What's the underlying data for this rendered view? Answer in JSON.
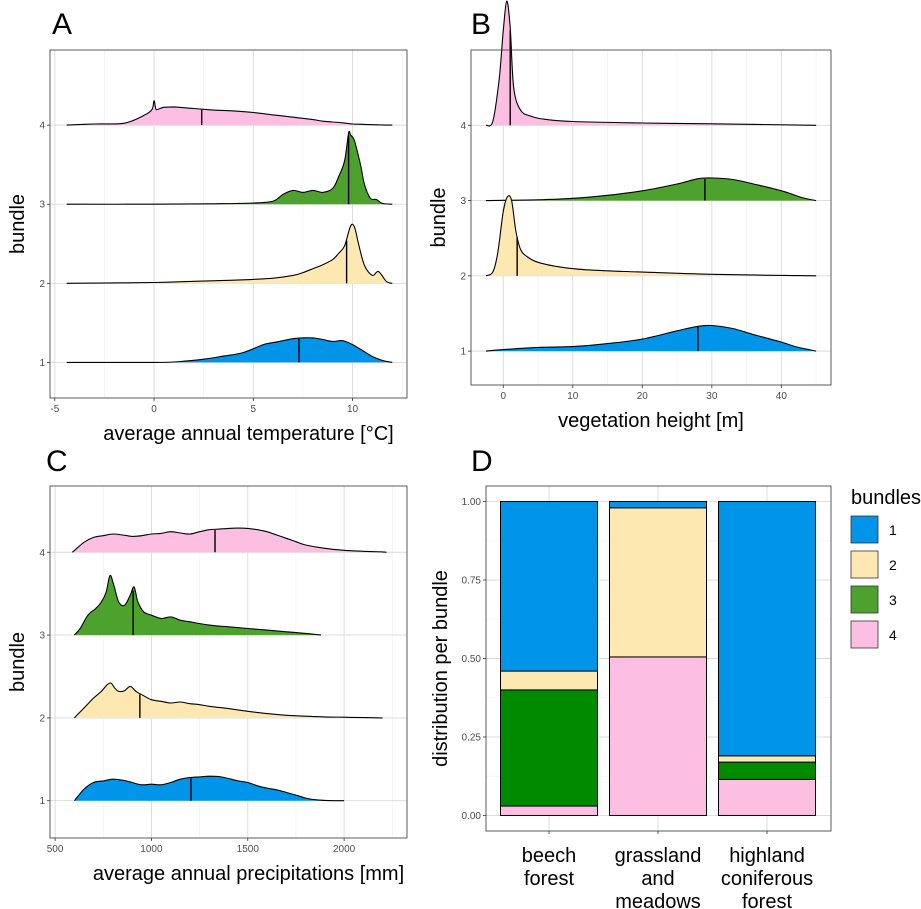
{
  "chart_data": [
    {
      "panel": "A",
      "type": "area",
      "xlabel": "average annual temperature [°C]",
      "ylabel": "bundle",
      "xlim": [
        -4.5,
        12
      ],
      "xticks": [
        -5,
        0,
        5,
        10
      ],
      "yticks": [
        1,
        2,
        3,
        4
      ],
      "series": [
        {
          "name": "1",
          "color": "#0095e8",
          "median": 7.3,
          "x": [
            -4.4,
            0,
            1,
            1.5,
            2.5,
            3.5,
            4.5,
            5.5,
            6,
            6.5,
            7,
            7.5,
            8,
            8.5,
            9,
            9.5,
            10,
            10.5,
            11,
            11.5,
            12
          ],
          "y": [
            0,
            0,
            0.01,
            0.03,
            0.08,
            0.16,
            0.25,
            0.45,
            0.5,
            0.55,
            0.6,
            0.62,
            0.62,
            0.58,
            0.53,
            0.55,
            0.45,
            0.3,
            0.15,
            0.05,
            0
          ]
        },
        {
          "name": "2",
          "color": "#fde8b2",
          "median": 9.7,
          "x": [
            -4.4,
            0,
            2,
            4,
            5,
            6,
            7,
            7.5,
            8,
            8.5,
            9,
            9.3,
            9.6,
            9.9,
            10.1,
            10.3,
            10.6,
            11,
            11.3,
            11.7,
            12
          ],
          "y": [
            0,
            0.02,
            0.05,
            0.08,
            0.1,
            0.13,
            0.2,
            0.27,
            0.37,
            0.47,
            0.6,
            0.76,
            0.95,
            1.45,
            1.42,
            1.0,
            0.45,
            0.2,
            0.3,
            0.05,
            0
          ]
        },
        {
          "name": "3",
          "color": "#4ca22c",
          "median": 9.8,
          "x": [
            -4.4,
            0,
            3,
            5,
            6,
            6.5,
            7,
            7.5,
            8,
            8.5,
            9,
            9.3,
            9.6,
            9.8,
            9.9,
            10.1,
            10.4,
            10.6,
            10.9,
            11.2,
            11.5,
            12
          ],
          "y": [
            0,
            0,
            0.01,
            0.03,
            0.08,
            0.25,
            0.35,
            0.3,
            0.35,
            0.3,
            0.4,
            0.7,
            1.1,
            1.8,
            1.75,
            1.6,
            1.0,
            0.5,
            0.15,
            0.12,
            0.02,
            0
          ]
        },
        {
          "name": "4",
          "color": "#fcbfe2",
          "median": 2.4,
          "x": [
            -4.4,
            -3,
            -1.5,
            -0.5,
            -0.1,
            0,
            0.1,
            0.3,
            0.5,
            1,
            1.5,
            2,
            2.5,
            3,
            4,
            5,
            6,
            7,
            8,
            8.5,
            9,
            9.5,
            10,
            10.5,
            11,
            12
          ],
          "y": [
            0,
            0.03,
            0.05,
            0.25,
            0.4,
            0.62,
            0.4,
            0.42,
            0.45,
            0.46,
            0.44,
            0.42,
            0.4,
            0.38,
            0.36,
            0.32,
            0.26,
            0.2,
            0.14,
            0.1,
            0.08,
            0.06,
            0.03,
            0.02,
            0.01,
            0
          ]
        }
      ]
    },
    {
      "panel": "B",
      "type": "area",
      "xlabel": "vegetation height [m]",
      "ylabel": "bundle",
      "xlim": [
        -2.5,
        45
      ],
      "xticks": [
        0,
        10,
        20,
        30,
        40
      ],
      "yticks": [
        1,
        2,
        3,
        4
      ],
      "series": [
        {
          "name": "1",
          "color": "#0095e8",
          "median": 28,
          "x": [
            -2.5,
            0,
            5,
            10,
            15,
            20,
            25,
            28,
            30,
            33,
            36,
            40,
            42,
            44,
            45
          ],
          "y": [
            0,
            0.02,
            0.05,
            0.06,
            0.1,
            0.16,
            0.27,
            0.33,
            0.34,
            0.3,
            0.22,
            0.12,
            0.06,
            0.02,
            0
          ]
        },
        {
          "name": "2",
          "color": "#fde8b2",
          "median": 2,
          "x": [
            -2.5,
            -1.5,
            -0.8,
            0,
            0.6,
            1.2,
            1.8,
            2.5,
            3.5,
            5,
            8,
            12,
            20,
            30,
            45
          ],
          "y": [
            0,
            0.05,
            0.3,
            0.85,
            1.05,
            1.0,
            0.6,
            0.35,
            0.25,
            0.18,
            0.12,
            0.08,
            0.05,
            0.02,
            0
          ]
        },
        {
          "name": "3",
          "color": "#4ca22c",
          "median": 29,
          "x": [
            -2.5,
            5,
            10,
            15,
            20,
            25,
            28,
            30,
            33,
            36,
            40,
            43,
            45
          ],
          "y": [
            0,
            0.01,
            0.03,
            0.07,
            0.13,
            0.22,
            0.29,
            0.3,
            0.28,
            0.22,
            0.13,
            0.04,
            0
          ]
        },
        {
          "name": "4",
          "color": "#fcbfe2",
          "median": 1,
          "x": [
            -2.5,
            -1.5,
            -0.6,
            0,
            0.5,
            1,
            1.5,
            2.5,
            4,
            6,
            10,
            20,
            30,
            45
          ],
          "y": [
            0,
            0.05,
            0.6,
            1.25,
            1.65,
            1.3,
            0.5,
            0.2,
            0.12,
            0.08,
            0.05,
            0.03,
            0.02,
            0
          ]
        }
      ]
    },
    {
      "panel": "C",
      "type": "area",
      "xlabel": "average annual precipitations [mm]",
      "ylabel": "bundle",
      "xlim": [
        550,
        2250
      ],
      "xticks": [
        500,
        1000,
        1500,
        2000
      ],
      "yticks": [
        1,
        2,
        3,
        4
      ],
      "series": [
        {
          "name": "1",
          "color": "#0095e8",
          "median": 1205,
          "x": [
            600,
            650,
            700,
            750,
            800,
            850,
            900,
            950,
            1000,
            1050,
            1100,
            1150,
            1200,
            1250,
            1300,
            1350,
            1400,
            1450,
            1500,
            1550,
            1600,
            1650,
            1700,
            1750,
            1800,
            1850,
            1900,
            2000
          ],
          "y": [
            0,
            0.35,
            0.55,
            0.6,
            0.65,
            0.62,
            0.55,
            0.48,
            0.5,
            0.48,
            0.55,
            0.65,
            0.7,
            0.72,
            0.74,
            0.73,
            0.67,
            0.6,
            0.55,
            0.45,
            0.38,
            0.33,
            0.25,
            0.17,
            0.08,
            0.03,
            0.01,
            0
          ]
        },
        {
          "name": "2",
          "color": "#fde8b2",
          "median": 940,
          "x": [
            600,
            650,
            700,
            740,
            770,
            790,
            810,
            830,
            860,
            890,
            920,
            950,
            1000,
            1050,
            1100,
            1150,
            1200,
            1250,
            1300,
            1400,
            1500,
            1600,
            1700,
            1800,
            1900,
            2000,
            2100,
            2200
          ],
          "y": [
            0,
            0.3,
            0.6,
            0.8,
            1.0,
            1.05,
            0.9,
            0.8,
            0.82,
            0.95,
            0.8,
            0.7,
            0.55,
            0.5,
            0.45,
            0.48,
            0.43,
            0.4,
            0.35,
            0.28,
            0.2,
            0.13,
            0.08,
            0.05,
            0.03,
            0.02,
            0.01,
            0
          ]
        },
        {
          "name": "3",
          "color": "#4ca22c",
          "median": 905,
          "x": [
            600,
            630,
            670,
            710,
            740,
            765,
            785,
            805,
            830,
            860,
            890,
            910,
            930,
            960,
            1000,
            1050,
            1100,
            1150,
            1200,
            1300,
            1400,
            1500,
            1600,
            1700,
            1800,
            1880
          ],
          "y": [
            0,
            0.2,
            0.6,
            0.8,
            1.0,
            1.3,
            1.8,
            1.5,
            1.0,
            0.9,
            1.2,
            1.45,
            1.0,
            0.7,
            0.6,
            0.5,
            0.55,
            0.45,
            0.4,
            0.3,
            0.25,
            0.2,
            0.15,
            0.1,
            0.05,
            0
          ]
        },
        {
          "name": "4",
          "color": "#fcbfe2",
          "median": 1330,
          "x": [
            590,
            650,
            700,
            750,
            800,
            850,
            900,
            950,
            1000,
            1050,
            1100,
            1150,
            1200,
            1250,
            1300,
            1350,
            1400,
            1450,
            1500,
            1550,
            1600,
            1650,
            1700,
            1750,
            1800,
            1900,
            2000,
            2100,
            2200,
            2220
          ],
          "y": [
            0,
            0.3,
            0.45,
            0.5,
            0.55,
            0.52,
            0.48,
            0.5,
            0.55,
            0.57,
            0.62,
            0.58,
            0.55,
            0.62,
            0.68,
            0.7,
            0.72,
            0.73,
            0.72,
            0.68,
            0.62,
            0.52,
            0.42,
            0.32,
            0.22,
            0.12,
            0.06,
            0.03,
            0.01,
            0
          ]
        }
      ]
    },
    {
      "panel": "D",
      "type": "bar",
      "stacked": true,
      "xlabel": "",
      "ylabel": "distribution per bundle",
      "ylim": [
        0,
        1
      ],
      "yticks": [
        "0.00",
        "0.25",
        "0.50",
        "0.75",
        "1.00"
      ],
      "categories": [
        [
          "beech",
          "forest"
        ],
        [
          "grassland",
          "and",
          "meadows"
        ],
        [
          "highland",
          "coniferous",
          "forest"
        ]
      ],
      "legend_title": "bundles",
      "legend_position": "right",
      "series": [
        {
          "name": "4",
          "color": "#fcbfe2",
          "values": [
            0.03,
            0.505,
            0.115
          ]
        },
        {
          "name": "3",
          "color": "#008a00",
          "values": [
            0.37,
            0.0,
            0.055
          ]
        },
        {
          "name": "2",
          "color": "#fde8b2",
          "values": [
            0.06,
            0.475,
            0.02
          ]
        },
        {
          "name": "1",
          "color": "#0095e8",
          "values": [
            0.54,
            0.02,
            0.81
          ]
        }
      ],
      "legend": [
        {
          "name": "1",
          "color": "#0095e8"
        },
        {
          "name": "2",
          "color": "#fde8b2"
        },
        {
          "name": "3",
          "color": "#4ca22c"
        },
        {
          "name": "4",
          "color": "#fcbfe2"
        }
      ]
    }
  ]
}
